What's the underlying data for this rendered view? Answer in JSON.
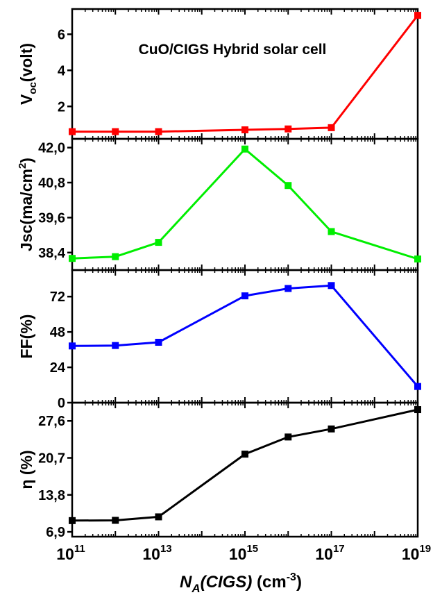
{
  "chart_data": {
    "type": "line",
    "annotation": "CuO/CIGS Hybrid solar cell",
    "x_axis": {
      "label_prefix": "N",
      "label_subscript": "A",
      "label_paren": "(CIGS)",
      "label_unit": " (cm",
      "label_unit_exponent": "-3",
      "label_close": ")",
      "scale": "log",
      "tick_base": "10",
      "tick_exponents": [
        "11",
        "13",
        "15",
        "17",
        "19"
      ],
      "xlim": [
        100000000000.0,
        1e+19
      ]
    },
    "x": [
      100000000000.0,
      1000000000000.0,
      10000000000000.0,
      1000000000000000.0,
      1e+16,
      1e+17,
      1e+19
    ],
    "panels": [
      {
        "ylabel_main": "V",
        "ylabel_sub": "oc",
        "ylabel_rest": "(volt)",
        "color": "#ff0000",
        "ylim": [
          0.2,
          7.4
        ],
        "ticks": [
          2,
          4,
          6
        ],
        "tick_labels": [
          "2",
          "4",
          "6"
        ],
        "values": [
          0.6,
          0.6,
          0.6,
          0.7,
          0.75,
          0.82,
          7.05
        ]
      },
      {
        "ylabel_main": "Jsc(ma/cm",
        "ylabel_sup": "2",
        "ylabel_rest": ")",
        "color": "#00ee00",
        "ylim": [
          37.8,
          42.3
        ],
        "ticks": [
          38.4,
          39.6,
          40.8,
          42.0
        ],
        "tick_labels": [
          "38,4",
          "39,6",
          "40,8",
          "42,0"
        ],
        "values": [
          38.2,
          38.26,
          38.75,
          41.95,
          40.7,
          39.12,
          38.18
        ]
      },
      {
        "ylabel_main": "FF(%)",
        "color": "#0000ff",
        "ylim": [
          0,
          90
        ],
        "ticks": [
          0,
          24,
          48,
          72
        ],
        "tick_labels": [
          "0",
          "24",
          "48",
          "72"
        ],
        "values": [
          38.5,
          38.8,
          41,
          72.5,
          77.5,
          79.5,
          11
        ]
      },
      {
        "ylabel_main": "η (%)",
        "color": "#000000",
        "ylim": [
          6.0,
          31.0
        ],
        "ticks": [
          6.9,
          13.8,
          20.7,
          27.6
        ],
        "tick_labels": [
          "6,9",
          "13,8",
          "20,7",
          "27,6"
        ],
        "values": [
          9.0,
          9.05,
          9.7,
          21.4,
          24.6,
          26.1,
          29.7
        ]
      }
    ]
  }
}
